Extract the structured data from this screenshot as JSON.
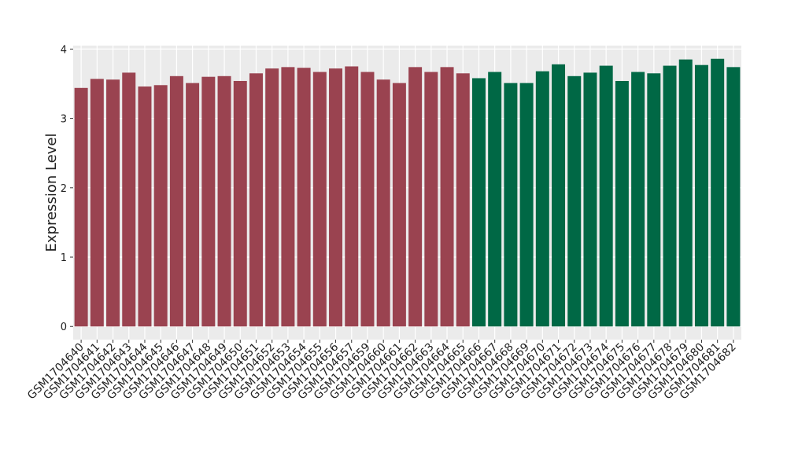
{
  "chart_data": {
    "type": "bar",
    "y_label": "Expression Level",
    "categories": [
      "GSM1704640",
      "GSM1704641",
      "GSM1704642",
      "GSM1704643",
      "GSM1704644",
      "GSM1704645",
      "GSM1704646",
      "GSM1704647",
      "GSM1704648",
      "GSM1704649",
      "GSM1704650",
      "GSM1704651",
      "GSM1704652",
      "GSM1704653",
      "GSM1704654",
      "GSM1704655",
      "GSM1704656",
      "GSM1704657",
      "GSM1704659",
      "GSM1704660",
      "GSM1704661",
      "GSM1704662",
      "GSM1704663",
      "GSM1704664",
      "GSM1704665",
      "GSM1704666",
      "GSM1704667",
      "GSM1704668",
      "GSM1704669",
      "GSM1704670",
      "GSM1704671",
      "GSM1704672",
      "GSM1704673",
      "GSM1704674",
      "GSM1704675",
      "GSM1704676",
      "GSM1704677",
      "GSM1704678",
      "GSM1704679",
      "GSM1704680",
      "GSM1704681",
      "GSM1704682"
    ],
    "values": [
      3.44,
      3.57,
      3.56,
      3.66,
      3.46,
      3.48,
      3.61,
      3.51,
      3.6,
      3.61,
      3.54,
      3.65,
      3.72,
      3.74,
      3.73,
      3.67,
      3.72,
      3.75,
      3.67,
      3.56,
      3.51,
      3.74,
      3.67,
      3.74,
      3.65,
      3.58,
      3.67,
      3.51,
      3.51,
      3.68,
      3.78,
      3.61,
      3.66,
      3.76,
      3.54,
      3.67,
      3.65,
      3.76,
      3.85,
      3.77,
      3.86,
      3.74
    ],
    "colors": [
      "#9a4350",
      "#9a4350",
      "#9a4350",
      "#9a4350",
      "#9a4350",
      "#9a4350",
      "#9a4350",
      "#9a4350",
      "#9a4350",
      "#9a4350",
      "#9a4350",
      "#9a4350",
      "#9a4350",
      "#9a4350",
      "#9a4350",
      "#9a4350",
      "#9a4350",
      "#9a4350",
      "#9a4350",
      "#9a4350",
      "#9a4350",
      "#9a4350",
      "#9a4350",
      "#9a4350",
      "#9a4350",
      "#006845",
      "#006845",
      "#006845",
      "#006845",
      "#006845",
      "#006845",
      "#006845",
      "#006845",
      "#006845",
      "#006845",
      "#006845",
      "#006845",
      "#006845",
      "#006845",
      "#006845",
      "#006845",
      "#006845"
    ],
    "ylim": [
      -0.19,
      4.05
    ],
    "yticks": [
      0,
      1,
      2,
      3,
      4
    ],
    "grid": true
  }
}
